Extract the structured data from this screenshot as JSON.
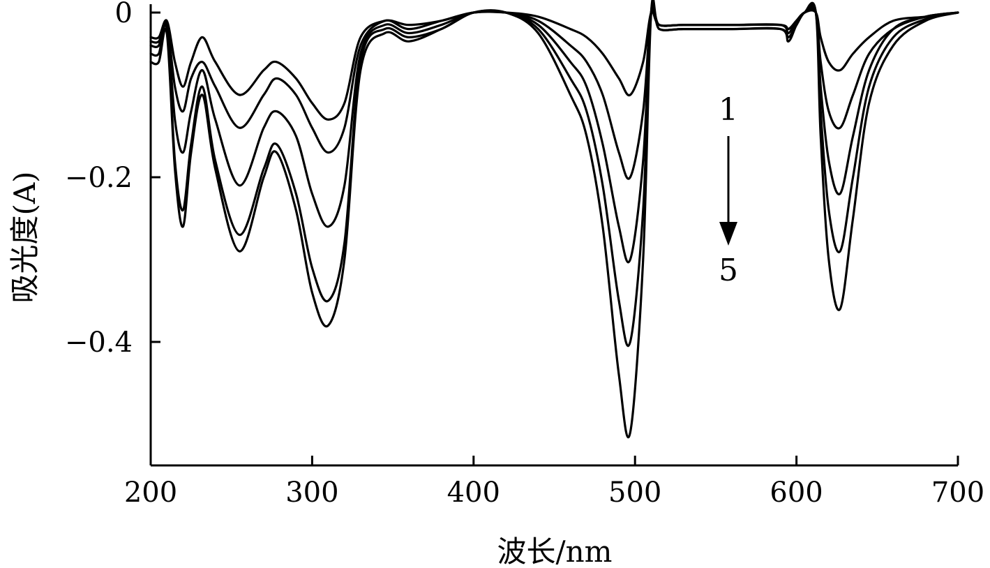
{
  "chart_data": {
    "type": "line",
    "title": "",
    "xlabel": "波长/nm",
    "ylabel": "吸光度(A)",
    "xlim": [
      200,
      700
    ],
    "ylim": [
      -0.55,
      0.01
    ],
    "x_ticks": [
      200,
      300,
      400,
      500,
      600,
      700
    ],
    "x_tick_labels": [
      "200",
      "300",
      "400",
      "500",
      "600",
      "700"
    ],
    "y_ticks": [
      0,
      -0.2,
      -0.4
    ],
    "y_tick_labels": [
      "0",
      "−0.2",
      "−0.4"
    ],
    "grid": false,
    "legend": "none",
    "annotation": {
      "from_label": "1",
      "to_label": "5",
      "arrow": "down"
    },
    "series": [
      {
        "x": [
          200,
          205,
          210,
          215,
          220,
          225,
          232,
          240,
          255,
          270,
          278,
          290,
          300,
          310,
          320,
          330,
          345,
          360,
          380,
          400,
          420,
          440,
          460,
          470,
          480,
          490,
          497,
          505,
          510,
          515,
          530,
          560,
          590,
          595,
          600,
          605,
          612,
          615,
          620,
          627,
          635,
          645,
          660,
          680,
          700
        ],
        "values": [
          -0.03,
          -0.03,
          -0.01,
          -0.06,
          -0.09,
          -0.06,
          -0.03,
          -0.06,
          -0.1,
          -0.07,
          -0.06,
          -0.08,
          -0.11,
          -0.13,
          -0.11,
          -0.03,
          -0.01,
          -0.015,
          -0.01,
          0,
          0,
          -0.005,
          -0.02,
          -0.03,
          -0.05,
          -0.08,
          -0.1,
          -0.06,
          0,
          -0.015,
          -0.015,
          -0.015,
          -0.015,
          -0.02,
          -0.01,
          0,
          0,
          -0.03,
          -0.06,
          -0.07,
          -0.05,
          -0.03,
          -0.01,
          -0.005,
          0
        ]
      },
      {
        "x": [
          200,
          205,
          210,
          215,
          220,
          225,
          232,
          240,
          255,
          270,
          278,
          290,
          300,
          310,
          320,
          330,
          345,
          360,
          380,
          400,
          420,
          440,
          460,
          470,
          480,
          490,
          497,
          505,
          510,
          515,
          530,
          560,
          590,
          595,
          600,
          605,
          612,
          615,
          620,
          627,
          635,
          645,
          660,
          680,
          700
        ],
        "values": [
          -0.035,
          -0.035,
          -0.015,
          -0.09,
          -0.12,
          -0.08,
          -0.06,
          -0.09,
          -0.14,
          -0.1,
          -0.08,
          -0.1,
          -0.14,
          -0.17,
          -0.14,
          -0.04,
          -0.01,
          -0.02,
          -0.01,
          0,
          0,
          -0.01,
          -0.04,
          -0.06,
          -0.1,
          -0.17,
          -0.2,
          -0.12,
          0,
          -0.015,
          -0.015,
          -0.015,
          -0.015,
          -0.02,
          -0.01,
          0,
          0,
          -0.06,
          -0.12,
          -0.14,
          -0.1,
          -0.05,
          -0.02,
          -0.005,
          0
        ]
      },
      {
        "x": [
          200,
          205,
          210,
          215,
          220,
          225,
          232,
          240,
          255,
          270,
          278,
          290,
          300,
          310,
          320,
          330,
          345,
          360,
          380,
          400,
          420,
          440,
          460,
          470,
          480,
          490,
          497,
          505,
          510,
          515,
          530,
          560,
          590,
          595,
          600,
          605,
          612,
          615,
          620,
          627,
          635,
          645,
          660,
          680,
          700
        ],
        "values": [
          -0.04,
          -0.04,
          -0.015,
          -0.13,
          -0.17,
          -0.12,
          -0.07,
          -0.13,
          -0.21,
          -0.14,
          -0.12,
          -0.15,
          -0.22,
          -0.26,
          -0.21,
          -0.05,
          -0.015,
          -0.025,
          -0.015,
          0,
          0,
          -0.015,
          -0.06,
          -0.09,
          -0.16,
          -0.26,
          -0.3,
          -0.18,
          0,
          -0.015,
          -0.015,
          -0.015,
          -0.015,
          -0.025,
          -0.01,
          0,
          0,
          -0.09,
          -0.18,
          -0.22,
          -0.15,
          -0.07,
          -0.02,
          -0.005,
          0
        ]
      },
      {
        "x": [
          200,
          205,
          210,
          215,
          220,
          225,
          232,
          240,
          255,
          270,
          278,
          290,
          300,
          310,
          320,
          330,
          345,
          360,
          380,
          400,
          420,
          440,
          460,
          470,
          480,
          490,
          497,
          505,
          510,
          515,
          530,
          560,
          590,
          595,
          600,
          605,
          612,
          615,
          620,
          627,
          635,
          645,
          660,
          680,
          700
        ],
        "values": [
          -0.05,
          -0.05,
          -0.02,
          -0.18,
          -0.24,
          -0.16,
          -0.09,
          -0.18,
          -0.27,
          -0.19,
          -0.16,
          -0.22,
          -0.31,
          -0.35,
          -0.28,
          -0.06,
          -0.02,
          -0.03,
          -0.02,
          0,
          0,
          -0.02,
          -0.08,
          -0.12,
          -0.21,
          -0.35,
          -0.4,
          -0.24,
          0,
          -0.02,
          -0.02,
          -0.02,
          -0.02,
          -0.03,
          -0.015,
          0,
          0,
          -0.12,
          -0.24,
          -0.29,
          -0.2,
          -0.09,
          -0.03,
          -0.008,
          0
        ]
      },
      {
        "x": [
          200,
          205,
          210,
          215,
          220,
          225,
          232,
          240,
          255,
          270,
          278,
          290,
          300,
          310,
          320,
          330,
          345,
          360,
          380,
          400,
          420,
          440,
          460,
          470,
          480,
          490,
          497,
          505,
          510,
          515,
          530,
          560,
          590,
          595,
          600,
          605,
          612,
          615,
          620,
          627,
          635,
          645,
          660,
          680,
          700
        ],
        "values": [
          -0.06,
          -0.06,
          -0.025,
          -0.19,
          -0.26,
          -0.17,
          -0.1,
          -0.19,
          -0.29,
          -0.2,
          -0.17,
          -0.24,
          -0.34,
          -0.38,
          -0.3,
          -0.07,
          -0.025,
          -0.035,
          -0.02,
          0,
          0,
          -0.025,
          -0.1,
          -0.15,
          -0.26,
          -0.44,
          -0.51,
          -0.3,
          0,
          -0.02,
          -0.02,
          -0.02,
          -0.02,
          -0.035,
          -0.015,
          0,
          0,
          -0.15,
          -0.3,
          -0.36,
          -0.25,
          -0.11,
          -0.04,
          -0.01,
          0
        ]
      }
    ]
  }
}
